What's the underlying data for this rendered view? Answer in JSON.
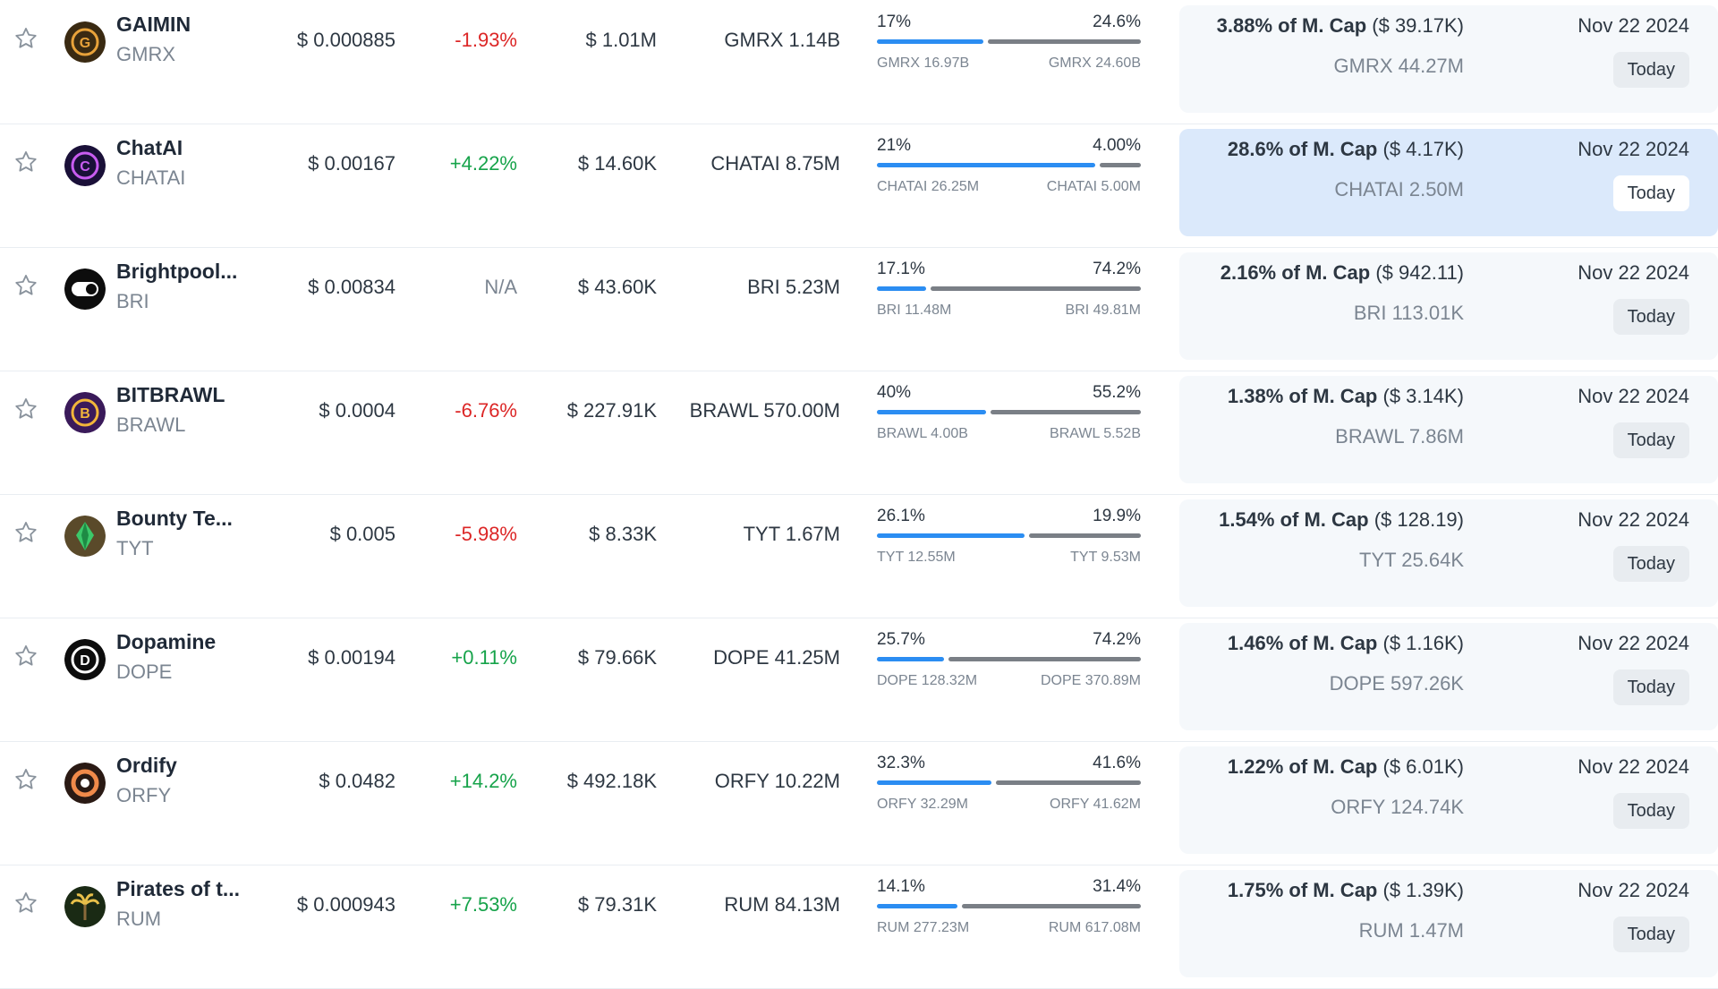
{
  "rows": [
    {
      "name": "GAIMIN",
      "symbol": "GMRX",
      "price": "$ 0.000885",
      "change": "-1.93%",
      "trend": "neg",
      "volume": "$ 1.01M",
      "supply": "GMRX 1.14B",
      "bar": {
        "left_pct": "17%",
        "right_pct": "24.6%",
        "left_amt": "GMRX 16.97B",
        "right_amt": "GMRX 24.60B",
        "fill": 0.41
      },
      "unlock": {
        "pct": "3.88% of M. Cap",
        "usd": "($ 39.17K)",
        "amount": "GMRX 44.27M",
        "date": "Nov 22 2024",
        "today": "Today"
      },
      "logo": {
        "bg": "#3a2a12",
        "fg": "#e8a23a",
        "letter": "G"
      },
      "highlight": false
    },
    {
      "name": "ChatAI",
      "symbol": "CHATAI",
      "price": "$ 0.00167",
      "change": "+4.22%",
      "trend": "pos",
      "volume": "$ 14.60K",
      "supply": "CHATAI 8.75M",
      "bar": {
        "left_pct": "21%",
        "right_pct": "4.00%",
        "left_amt": "CHATAI 26.25M",
        "right_amt": "CHATAI 5.00M",
        "fill": 0.84
      },
      "unlock": {
        "pct": "28.6% of M. Cap",
        "usd": "($ 4.17K)",
        "amount": "CHATAI 2.50M",
        "date": "Nov 22 2024",
        "today": "Today"
      },
      "logo": {
        "bg": "#1a1038",
        "fg": "#c85cf0",
        "letter": "C"
      },
      "highlight": true
    },
    {
      "name": "Brightpool...",
      "symbol": "BRI",
      "price": "$ 0.00834",
      "change": "N/A",
      "trend": "na",
      "volume": "$ 43.60K",
      "supply": "BRI 5.23M",
      "bar": {
        "left_pct": "17.1%",
        "right_pct": "74.2%",
        "left_amt": "BRI 11.48M",
        "right_amt": "BRI 49.81M",
        "fill": 0.19
      },
      "unlock": {
        "pct": "2.16% of M. Cap",
        "usd": "($ 942.11)",
        "amount": "BRI 113.01K",
        "date": "Nov 22 2024",
        "today": "Today"
      },
      "logo": {
        "bg": "#0d0d0d",
        "fg": "#ffffff",
        "letter": ""
      },
      "highlight": false
    },
    {
      "name": "BITBRAWL",
      "symbol": "BRAWL",
      "price": "$ 0.0004",
      "change": "-6.76%",
      "trend": "neg",
      "volume": "$ 227.91K",
      "supply": "BRAWL 570.00M",
      "bar": {
        "left_pct": "40%",
        "right_pct": "55.2%",
        "left_amt": "BRAWL 4.00B",
        "right_amt": "BRAWL 5.52B",
        "fill": 0.42
      },
      "unlock": {
        "pct": "1.38% of M. Cap",
        "usd": "($ 3.14K)",
        "amount": "BRAWL 7.86M",
        "date": "Nov 22 2024",
        "today": "Today"
      },
      "logo": {
        "bg": "#3a1a5a",
        "fg": "#f2b63a",
        "letter": "B"
      },
      "highlight": false
    },
    {
      "name": "Bounty Te...",
      "symbol": "TYT",
      "price": "$ 0.005",
      "change": "-5.98%",
      "trend": "neg",
      "volume": "$ 8.33K",
      "supply": "TYT 1.67M",
      "bar": {
        "left_pct": "26.1%",
        "right_pct": "19.9%",
        "left_amt": "TYT 12.55M",
        "right_amt": "TYT 9.53M",
        "fill": 0.57
      },
      "unlock": {
        "pct": "1.54% of M. Cap",
        "usd": "($ 128.19)",
        "amount": "TYT 25.64K",
        "date": "Nov 22 2024",
        "today": "Today"
      },
      "logo": {
        "bg": "#5a4a2a",
        "fg": "#3cc86a",
        "letter": ""
      },
      "highlight": false
    },
    {
      "name": "Dopamine",
      "symbol": "DOPE",
      "price": "$ 0.00194",
      "change": "+0.11%",
      "trend": "pos",
      "volume": "$ 79.66K",
      "supply": "DOPE 41.25M",
      "bar": {
        "left_pct": "25.7%",
        "right_pct": "74.2%",
        "left_amt": "DOPE 128.32M",
        "right_amt": "DOPE 370.89M",
        "fill": 0.26
      },
      "unlock": {
        "pct": "1.46% of M. Cap",
        "usd": "($ 1.16K)",
        "amount": "DOPE 597.26K",
        "date": "Nov 22 2024",
        "today": "Today"
      },
      "logo": {
        "bg": "#0d0d0d",
        "fg": "#ffffff",
        "letter": "D"
      },
      "highlight": false
    },
    {
      "name": "Ordify",
      "symbol": "ORFY",
      "price": "$ 0.0482",
      "change": "+14.2%",
      "trend": "pos",
      "volume": "$ 492.18K",
      "supply": "ORFY 10.22M",
      "bar": {
        "left_pct": "32.3%",
        "right_pct": "41.6%",
        "left_amt": "ORFY 32.29M",
        "right_amt": "ORFY 41.62M",
        "fill": 0.44
      },
      "unlock": {
        "pct": "1.22% of M. Cap",
        "usd": "($ 6.01K)",
        "amount": "ORFY 124.74K",
        "date": "Nov 22 2024",
        "today": "Today"
      },
      "logo": {
        "bg": "#2a1a14",
        "fg": "#f08a4a",
        "letter": ""
      },
      "highlight": false
    },
    {
      "name": "Pirates of t...",
      "symbol": "RUM",
      "price": "$ 0.000943",
      "change": "+7.53%",
      "trend": "pos",
      "volume": "$ 79.31K",
      "supply": "RUM 84.13M",
      "bar": {
        "left_pct": "14.1%",
        "right_pct": "31.4%",
        "left_amt": "RUM 277.23M",
        "right_amt": "RUM 617.08M",
        "fill": 0.31
      },
      "unlock": {
        "pct": "1.75% of M. Cap",
        "usd": "($ 1.39K)",
        "amount": "RUM 1.47M",
        "date": "Nov 22 2024",
        "today": "Today"
      },
      "logo": {
        "bg": "#1a2a14",
        "fg": "#e8c04a",
        "letter": ""
      },
      "highlight": false
    }
  ]
}
